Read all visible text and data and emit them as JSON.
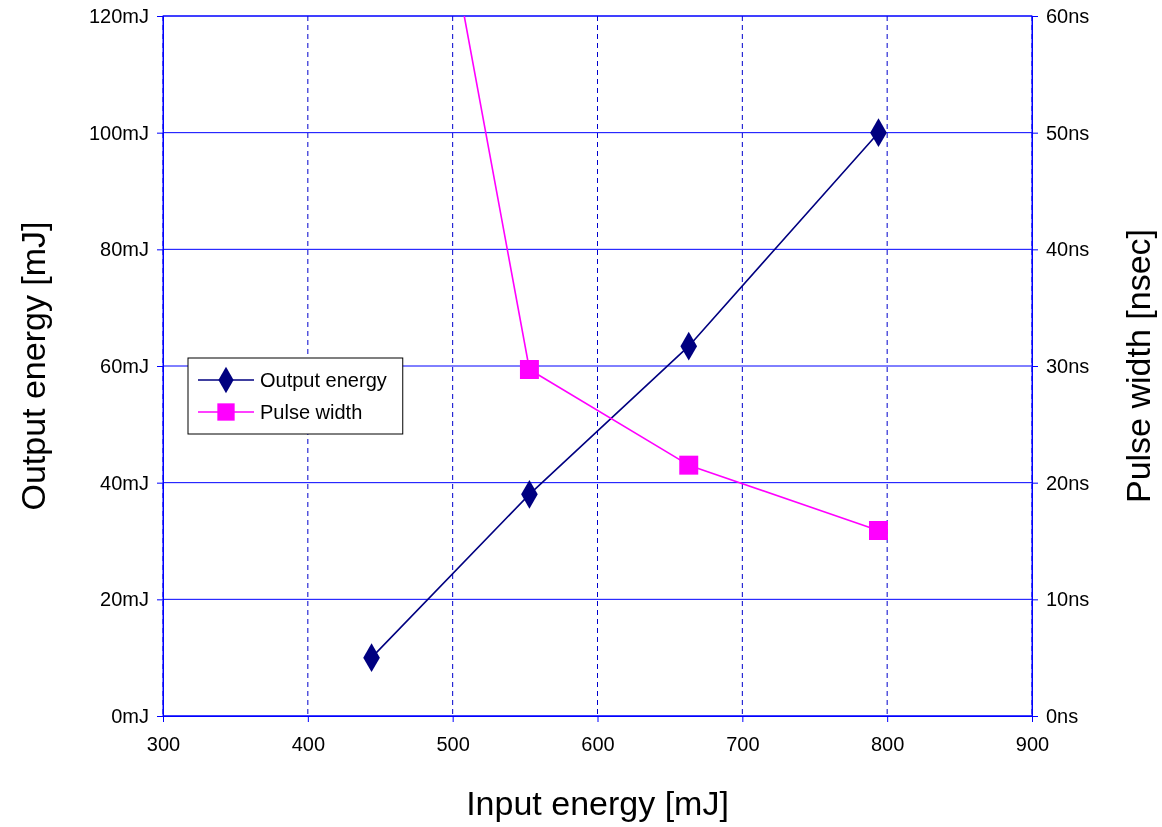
{
  "chart_data": {
    "type": "line",
    "xlabel": "Input energy [mJ]",
    "ylabel": "Output energy [mJ]",
    "y2label": "Pulse width [nsec]",
    "xlim": [
      300,
      900
    ],
    "xticks": [
      300,
      400,
      500,
      600,
      700,
      800,
      900
    ],
    "ylim": [
      0,
      120
    ],
    "yticks": [
      {
        "value": 0,
        "label": "0mJ"
      },
      {
        "value": 20,
        "label": "20mJ"
      },
      {
        "value": 40,
        "label": "40mJ"
      },
      {
        "value": 60,
        "label": "60mJ"
      },
      {
        "value": 80,
        "label": "80mJ"
      },
      {
        "value": 100,
        "label": "100mJ"
      },
      {
        "value": 120,
        "label": "120mJ"
      }
    ],
    "y2lim": [
      0,
      60
    ],
    "y2ticks": [
      {
        "value": 0,
        "label": "0ns"
      },
      {
        "value": 10,
        "label": "10ns"
      },
      {
        "value": 20,
        "label": "20ns"
      },
      {
        "value": 30,
        "label": "30ns"
      },
      {
        "value": 40,
        "label": "40ns"
      },
      {
        "value": 50,
        "label": "50ns"
      },
      {
        "value": 60,
        "label": "60ns"
      }
    ],
    "grid": true,
    "legend": "left",
    "series": [
      {
        "name": "Output energy",
        "color": "#000080",
        "marker": "diamond",
        "x": [
          444,
          553,
          663,
          794
        ],
        "values": [
          10,
          38,
          63.4,
          100
        ]
      },
      {
        "name": "Pulse width",
        "color": "#ff00ff",
        "marker": "square",
        "axis": "y2",
        "x": [
          508,
          553,
          663,
          794
        ],
        "values": [
          60,
          29.7,
          21.5,
          15.9
        ]
      }
    ]
  }
}
